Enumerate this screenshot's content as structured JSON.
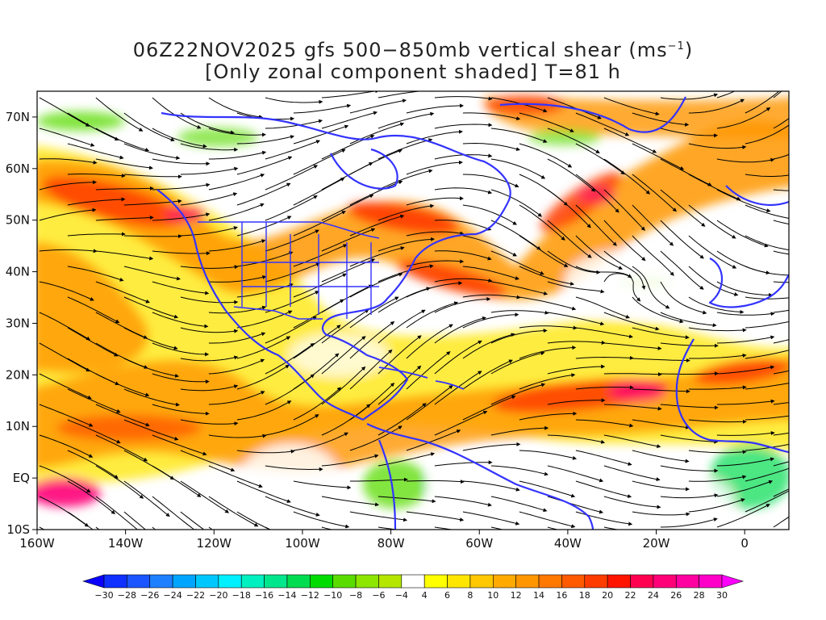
{
  "title": {
    "line1_prefix": "06Z22NOV2025 gfs 500−850mb vertical shear (ms",
    "line1_sup": "−1",
    "line1_suffix": ")",
    "line2": "[Only zonal component shaded] T=81 h"
  },
  "axes": {
    "lat_labels": [
      "70N",
      "60N",
      "50N",
      "40N",
      "30N",
      "20N",
      "10N",
      "EQ",
      "10S"
    ],
    "lat_values": [
      70,
      60,
      50,
      40,
      30,
      20,
      10,
      0,
      -10
    ],
    "lon_labels": [
      "160W",
      "140W",
      "120W",
      "100W",
      "80W",
      "60W",
      "40W",
      "20W",
      "0"
    ],
    "lon_values": [
      -160,
      -140,
      -120,
      -100,
      -80,
      -60,
      -40,
      -20,
      0
    ],
    "lon_range": [
      -160,
      10
    ],
    "lat_range": [
      -10,
      75
    ]
  },
  "colorbar": {
    "labels": [
      "−30",
      "−28",
      "−26",
      "−24",
      "−22",
      "−20",
      "−18",
      "−16",
      "−14",
      "−12",
      "−10",
      "−8",
      "−6",
      "−4",
      "4",
      "6",
      "8",
      "10",
      "12",
      "14",
      "16",
      "18",
      "20",
      "22",
      "24",
      "26",
      "28",
      "30"
    ],
    "colors": [
      "#0a00ff",
      "#0f30ff",
      "#1a55ff",
      "#1e80ff",
      "#00a5ff",
      "#00c8ff",
      "#00f0ff",
      "#00f0c0",
      "#00e68c",
      "#00dc50",
      "#00dc00",
      "#5adc00",
      "#8ce600",
      "#b4e600",
      "#ffffff",
      "#ffff00",
      "#ffe600",
      "#ffc800",
      "#ffaa00",
      "#ff9600",
      "#ff7800",
      "#ff5a00",
      "#ff3c00",
      "#ff1400",
      "#ff0050",
      "#ff0078",
      "#ff00a0",
      "#ff00c8",
      "#ff00ff"
    ]
  },
  "colors": {
    "coast": "#3333ff",
    "streamline": "#000000",
    "shade_orange": "#ff9600",
    "shade_red": "#ff3c00",
    "shade_yellow": "#ffe600",
    "shade_green": "#8ce600",
    "shade_magenta": "#ff0078"
  }
}
